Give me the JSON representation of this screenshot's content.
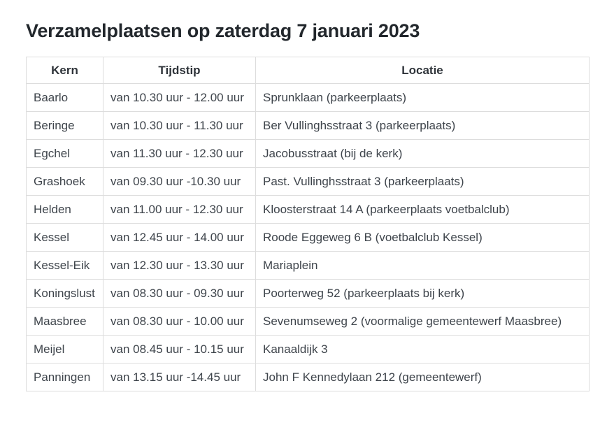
{
  "page": {
    "title": "Verzamelplaatsen op zaterdag 7 januari 2023"
  },
  "colors": {
    "background": "#ffffff",
    "heading_text": "#22272c",
    "body_text": "#3e444b",
    "table_border": "#dddddd"
  },
  "table": {
    "columns": [
      "Kern",
      "Tijdstip",
      "Locatie"
    ],
    "rows": [
      {
        "kern": "Baarlo",
        "tijdstip": "van 10.30 uur - 12.00 uur",
        "locatie": "Sprunklaan (parkeerplaats)"
      },
      {
        "kern": "Beringe",
        "tijdstip": "van 10.30 uur - 11.30 uur",
        "locatie": "Ber Vullinghsstraat 3 (parkeerplaats)"
      },
      {
        "kern": "Egchel",
        "tijdstip": "van 11.30 uur - 12.30 uur",
        "locatie": "Jacobusstraat (bij de kerk)"
      },
      {
        "kern": "Grashoek",
        "tijdstip": "van 09.30 uur -10.30 uur",
        "locatie": "Past. Vullinghsstraat 3 (parkeerplaats)"
      },
      {
        "kern": "Helden",
        "tijdstip": "van 11.00 uur - 12.30 uur",
        "locatie": "Kloosterstraat 14 A (parkeerplaats voetbalclub)"
      },
      {
        "kern": "Kessel",
        "tijdstip": "van 12.45 uur - 14.00 uur",
        "locatie": "Roode Eggeweg 6 B (voetbalclub Kessel)"
      },
      {
        "kern": "Kessel-Eik",
        "tijdstip": "van 12.30 uur - 13.30 uur",
        "locatie": "Mariaplein"
      },
      {
        "kern": "Koningslust",
        "tijdstip": "van 08.30 uur - 09.30 uur",
        "locatie": "Poorterweg 52 (parkeerplaats bij kerk)"
      },
      {
        "kern": "Maasbree",
        "tijdstip": "van 08.30 uur - 10.00 uur",
        "locatie": "Sevenumseweg 2 (voormalige gemeentewerf Maasbree)"
      },
      {
        "kern": "Meijel",
        "tijdstip": "van 08.45 uur - 10.15 uur",
        "locatie": "Kanaaldijk 3"
      },
      {
        "kern": "Panningen",
        "tijdstip": "van 13.15 uur -14.45 uur",
        "locatie": "John F Kennedylaan 212 (gemeentewerf)"
      }
    ]
  }
}
